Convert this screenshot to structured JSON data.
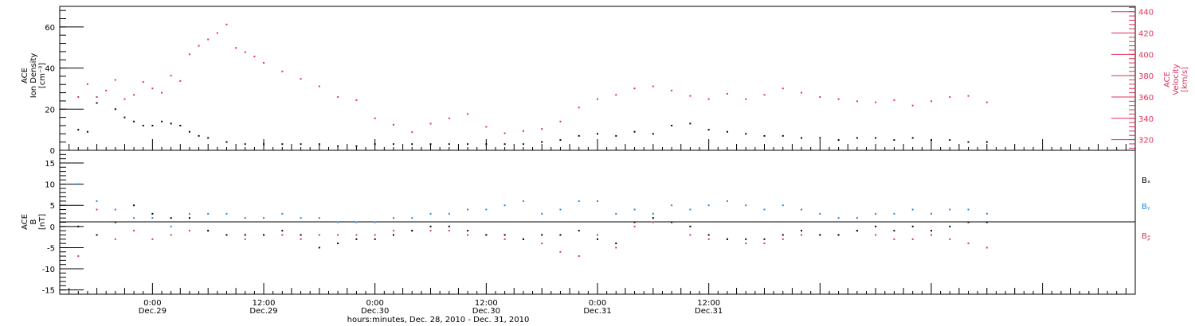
{
  "colors": {
    "black": "#000000",
    "red": "#e0305a",
    "blue": "#1e88e5"
  },
  "chart_data": [
    {
      "type": "scatter",
      "panel": "top",
      "left_axis_label": [
        "ACE",
        "Ion Density",
        "[cm⁻³]"
      ],
      "right_axis_label": [
        "ACE",
        "Velocity",
        "[km/s]"
      ],
      "ylim_left": [
        0,
        70
      ],
      "yticks_left": [
        "0",
        "20",
        "40",
        "60"
      ],
      "ylim_right": [
        310,
        445
      ],
      "yticks_right": [
        "320",
        "340",
        "360",
        "380",
        "400",
        "420",
        "440"
      ],
      "series": [
        {
          "name": "Ion Density",
          "axis": "left",
          "color": "#000000",
          "x": [
            -8,
            -7,
            -6,
            -4,
            -3,
            -2,
            -1,
            0,
            1,
            2,
            3,
            4,
            5,
            6,
            8,
            10,
            12,
            14,
            16,
            18,
            20,
            22,
            24,
            26,
            28,
            30,
            32,
            34,
            36,
            38,
            40,
            42,
            44,
            46,
            48,
            50,
            52,
            54,
            56,
            58,
            60,
            62,
            64,
            66,
            68,
            70,
            72,
            74,
            76,
            78,
            80,
            82,
            84,
            86,
            88,
            90
          ],
          "y": [
            10,
            9,
            23,
            20,
            16,
            14,
            12,
            12,
            14,
            13,
            12,
            9,
            7,
            6,
            4,
            3,
            3,
            3,
            3,
            3,
            2,
            2,
            3,
            3,
            3,
            3,
            3,
            3,
            3,
            3,
            3,
            4,
            5,
            7,
            8,
            7,
            9,
            8,
            12,
            13,
            10,
            9,
            8,
            7,
            7,
            6,
            6,
            5,
            6,
            6,
            5,
            6,
            5,
            5,
            4,
            4
          ]
        },
        {
          "name": "Velocity",
          "axis": "right",
          "color": "#e0305a",
          "x": [
            -8,
            -7,
            -6,
            -5,
            -4,
            -3,
            -2,
            -1,
            0,
            1,
            2,
            3,
            4,
            5,
            6,
            7,
            8,
            9,
            10,
            11,
            12,
            14,
            16,
            18,
            20,
            22,
            24,
            26,
            28,
            30,
            32,
            34,
            36,
            38,
            40,
            42,
            44,
            46,
            48,
            50,
            52,
            54,
            56,
            58,
            60,
            62,
            64,
            66,
            68,
            70,
            72,
            74,
            76,
            78,
            80,
            82,
            84,
            86,
            88,
            90
          ],
          "y": [
            360,
            372,
            360,
            366,
            376,
            358,
            362,
            374,
            368,
            364,
            380,
            375,
            400,
            408,
            414,
            420,
            428,
            406,
            402,
            398,
            392,
            384,
            377,
            370,
            360,
            357,
            340,
            334,
            327,
            335,
            340,
            344,
            332,
            326,
            328,
            330,
            337,
            350,
            358,
            362,
            368,
            370,
            366,
            361,
            358,
            363,
            358,
            362,
            368,
            364,
            360,
            358,
            356,
            355,
            357,
            352,
            356,
            360,
            361,
            355
          ]
        }
      ]
    },
    {
      "type": "scatter",
      "panel": "bottom",
      "left_axis_label": [
        "ACE",
        "B",
        "[nT]"
      ],
      "ylim": [
        -16,
        18
      ],
      "yticks": [
        "-15",
        "-10",
        "-5",
        "0",
        "5",
        "10",
        "15"
      ],
      "legend": [
        "Bₓ",
        "Bᵧ",
        "B𝓏"
      ],
      "legend_position": "right",
      "series": [
        {
          "name": "Bx",
          "color": "#000000",
          "x": [
            -8,
            -6,
            -4,
            -2,
            0,
            2,
            4,
            6,
            8,
            10,
            12,
            14,
            16,
            18,
            20,
            22,
            24,
            26,
            28,
            30,
            32,
            34,
            36,
            38,
            40,
            42,
            44,
            46,
            48,
            50,
            52,
            54,
            56,
            58,
            60,
            62,
            64,
            66,
            68,
            70,
            72,
            74,
            76,
            78,
            80,
            82,
            84,
            86,
            88,
            90
          ],
          "y": [
            0,
            -2,
            1,
            5,
            3,
            2,
            2,
            -1,
            -2,
            -2,
            -2,
            -1,
            -2,
            -5,
            -4,
            -3,
            -3,
            -2,
            -1,
            0,
            0,
            -1,
            -2,
            -2,
            -3,
            -2,
            -2,
            -1,
            -3,
            -4,
            1,
            2,
            1,
            0,
            -2,
            -3,
            -3,
            -3,
            -2,
            -1,
            -2,
            -2,
            -1,
            0,
            -1,
            0,
            -1,
            0,
            1,
            1
          ]
        },
        {
          "name": "By",
          "color": "#1e88e5",
          "x": [
            -8,
            -6,
            -4,
            -2,
            0,
            2,
            4,
            6,
            8,
            10,
            12,
            14,
            16,
            18,
            20,
            22,
            24,
            26,
            28,
            30,
            32,
            34,
            36,
            38,
            40,
            42,
            44,
            46,
            48,
            50,
            52,
            54,
            56,
            58,
            60,
            62,
            64,
            66,
            68,
            70,
            72,
            74,
            76,
            78,
            80,
            82,
            84,
            86,
            88,
            90
          ],
          "y": [
            10,
            6,
            4,
            2,
            2,
            0,
            3,
            3,
            3,
            2,
            2,
            3,
            2,
            2,
            1,
            1,
            1,
            2,
            2,
            3,
            3,
            4,
            4,
            5,
            6,
            3,
            4,
            6,
            6,
            3,
            4,
            3,
            5,
            4,
            5,
            6,
            5,
            4,
            5,
            4,
            3,
            2,
            2,
            3,
            3,
            4,
            3,
            4,
            4,
            3
          ]
        },
        {
          "name": "Bz",
          "color": "#e0305a",
          "x": [
            -8,
            -6,
            -4,
            -2,
            0,
            2,
            4,
            6,
            8,
            10,
            12,
            14,
            16,
            18,
            20,
            22,
            24,
            26,
            28,
            30,
            32,
            34,
            36,
            38,
            40,
            42,
            44,
            46,
            48,
            50,
            52,
            54,
            56,
            58,
            60,
            62,
            64,
            66,
            68,
            70,
            72,
            74,
            76,
            78,
            80,
            82,
            84,
            86,
            88,
            90
          ],
          "y": [
            -7,
            4,
            -3,
            -1,
            -3,
            -2,
            -1,
            -1,
            -2,
            -3,
            -2,
            -2,
            -3,
            -2,
            -2,
            -2,
            -2,
            -1,
            -1,
            -1,
            -1,
            -2,
            -2,
            -3,
            -3,
            -4,
            -6,
            -7,
            -2,
            -5,
            0,
            1,
            1,
            -2,
            -3,
            -3,
            -4,
            -4,
            -3,
            -2,
            -2,
            -2,
            -1,
            -2,
            -3,
            -3,
            -2,
            -3,
            -4,
            -5
          ]
        }
      ]
    }
  ],
  "x_axis": {
    "range_hours": [
      -10,
      106
    ],
    "ticks": [
      {
        "hour": 0,
        "time": "0:00",
        "date": "Dec.29"
      },
      {
        "hour": 12,
        "time": "12:00",
        "date": "Dec.29"
      },
      {
        "hour": 24,
        "time": "0:00",
        "date": "Dec.30"
      },
      {
        "hour": 36,
        "time": "12:00",
        "date": "Dec.30"
      },
      {
        "hour": 48,
        "time": "0:00",
        "date": "Dec.31"
      },
      {
        "hour": 60,
        "time": "12:00",
        "date": "Dec.31"
      }
    ],
    "title": "hours:minutes, Dec. 28, 2010 - Dec. 31, 2010"
  }
}
